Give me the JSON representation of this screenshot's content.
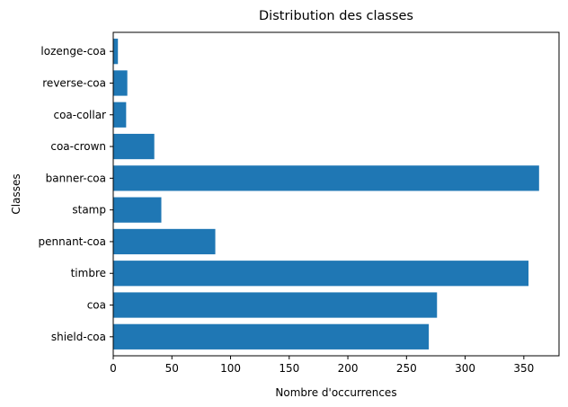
{
  "chart_data": {
    "type": "bar",
    "orientation": "horizontal",
    "title": "Distribution des classes",
    "xlabel": "Nombre d'occurrences",
    "ylabel": "Classes",
    "categories": [
      "shield-coa",
      "coa",
      "timbre",
      "pennant-coa",
      "stamp",
      "banner-coa",
      "coa-crown",
      "coa-collar",
      "reverse-coa",
      "lozenge-coa"
    ],
    "values": [
      269,
      276,
      354,
      87,
      41,
      363,
      35,
      11,
      12,
      4
    ],
    "xlim": [
      0,
      380
    ],
    "xticks": [
      0,
      50,
      100,
      150,
      200,
      250,
      300,
      350
    ],
    "grid": false,
    "bar_color": "#1f77b4"
  }
}
